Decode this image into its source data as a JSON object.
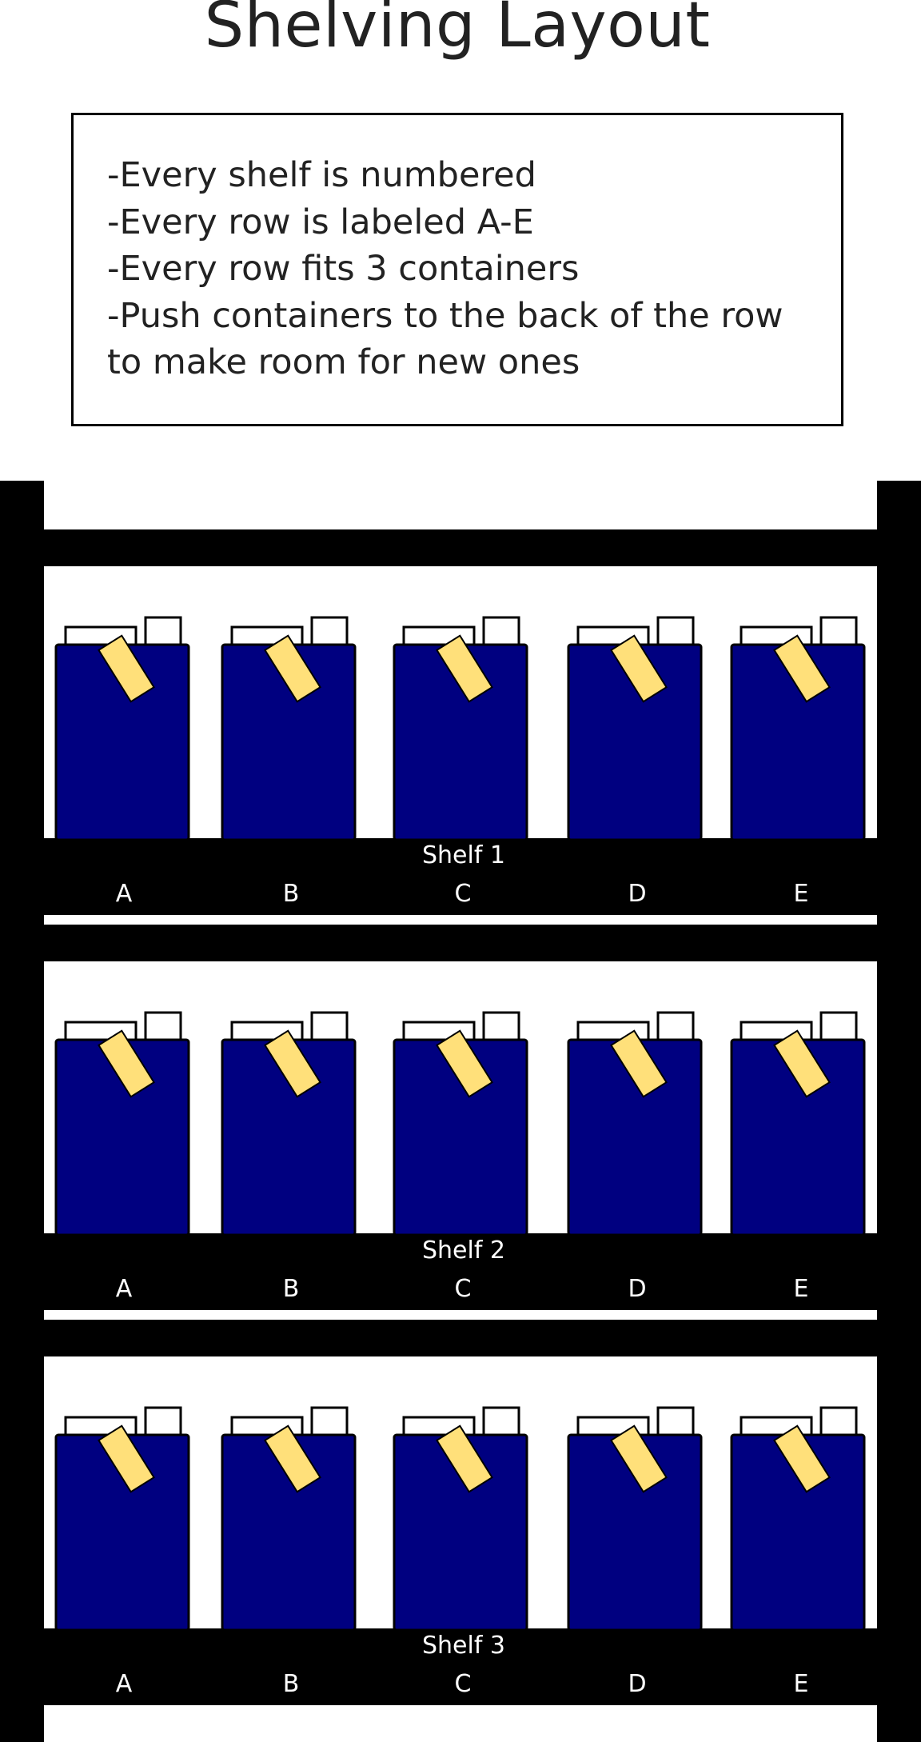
{
  "title": "Shelving Layout",
  "rules": [
    "-Every shelf is numbered",
    "-Every row is labeled A-E",
    "-Every row fits 3 containers",
    "-Push containers to the back of the row",
    "to make room for new ones"
  ],
  "colors": {
    "frame": "#000000",
    "container": "#000080",
    "container_outline": "#000000",
    "lid_tab": "#ffffff",
    "label_tag": "#ffe07a",
    "text_on_frame": "#ffffff"
  },
  "icons": {
    "container": "blue-container-icon",
    "label_tag": "yellow-label-tag-icon"
  },
  "shelves": [
    {
      "label": "Shelf 1",
      "rows": [
        {
          "label": "A"
        },
        {
          "label": "B"
        },
        {
          "label": "C"
        },
        {
          "label": "D"
        },
        {
          "label": "E"
        }
      ]
    },
    {
      "label": "Shelf 2",
      "rows": [
        {
          "label": "A"
        },
        {
          "label": "B"
        },
        {
          "label": "C"
        },
        {
          "label": "D"
        },
        {
          "label": "E"
        }
      ]
    },
    {
      "label": "Shelf 3",
      "rows": [
        {
          "label": "A"
        },
        {
          "label": "B"
        },
        {
          "label": "C"
        },
        {
          "label": "D"
        },
        {
          "label": "E"
        }
      ]
    }
  ]
}
